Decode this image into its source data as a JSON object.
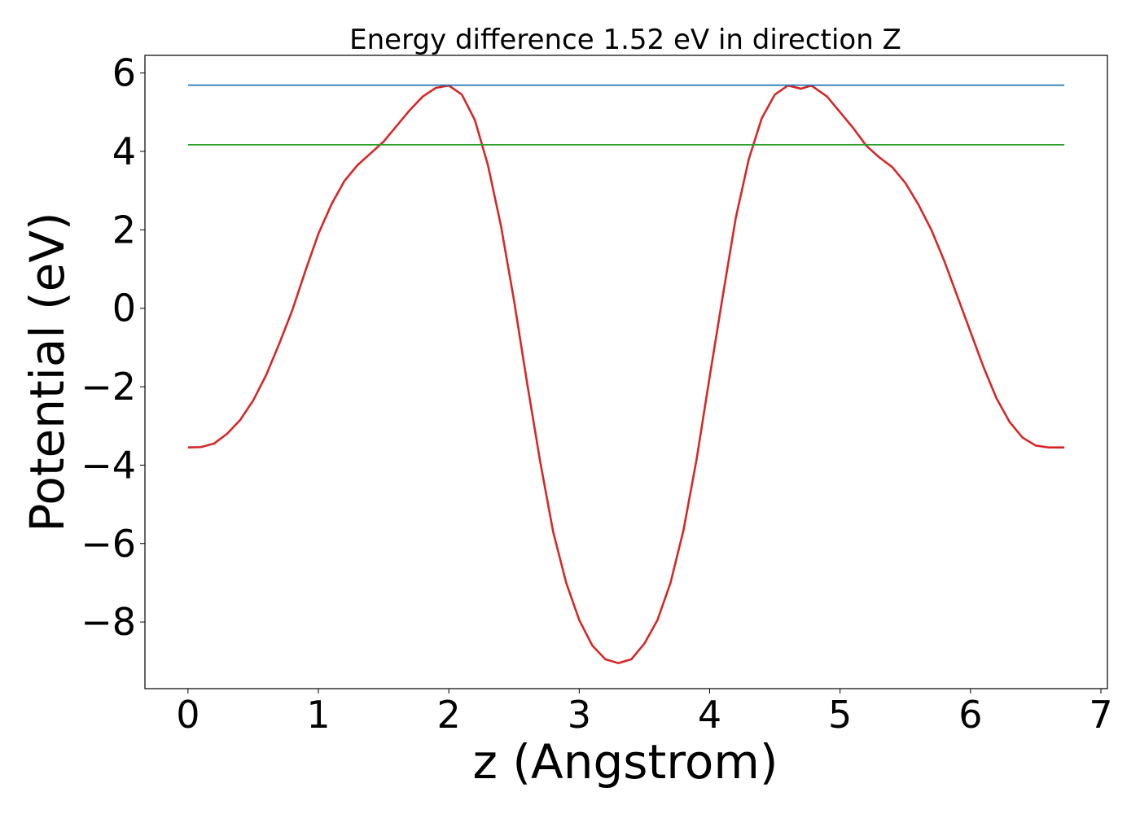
{
  "chart_data": {
    "type": "line",
    "title": "Energy difference 1.52 eV in direction Z",
    "xlabel": "z (Angstrom)",
    "ylabel": "Potential (eV)",
    "xlim": [
      -0.33,
      7.05
    ],
    "ylim": [
      -9.7,
      6.45
    ],
    "xticks": [
      0,
      1,
      2,
      3,
      4,
      5,
      6,
      7
    ],
    "yticks": [
      -8,
      -6,
      -4,
      -2,
      0,
      2,
      4,
      6
    ],
    "xtick_labels": [
      "0",
      "1",
      "2",
      "3",
      "4",
      "5",
      "6",
      "7"
    ],
    "ytick_labels": [
      "−8",
      "−6",
      "−4",
      "−2",
      "0",
      "2",
      "4",
      "6"
    ],
    "grid": false,
    "series": [
      {
        "color": "#d62728",
        "x": [
          0,
          0.1,
          0.2,
          0.3,
          0.4,
          0.5,
          0.6,
          0.7,
          0.8,
          0.9,
          1.0,
          1.1,
          1.2,
          1.3,
          1.4,
          1.5,
          1.6,
          1.7,
          1.8,
          1.9,
          2.0,
          2.1,
          2.2,
          2.3,
          2.4,
          2.5,
          2.6,
          2.7,
          2.8,
          2.9,
          3.0,
          3.1,
          3.2,
          3.3,
          3.4,
          3.5,
          3.6,
          3.7,
          3.8,
          3.9,
          4.0,
          4.1,
          4.2,
          4.3,
          4.4,
          4.5,
          4.6,
          4.7,
          4.78,
          4.9,
          5.0,
          5.1,
          5.2,
          5.3,
          5.4,
          5.5,
          5.6,
          5.7,
          5.8,
          5.9,
          6.0,
          6.1,
          6.2,
          6.3,
          6.4,
          6.5,
          6.6,
          6.72
        ],
        "y": [
          -3.55,
          -3.54,
          -3.45,
          -3.2,
          -2.85,
          -2.35,
          -1.7,
          -0.9,
          -0.05,
          0.95,
          1.9,
          2.65,
          3.25,
          3.65,
          3.95,
          4.25,
          4.65,
          5.05,
          5.4,
          5.62,
          5.68,
          5.45,
          4.8,
          3.65,
          2.1,
          0.2,
          -1.9,
          -3.9,
          -5.7,
          -7.0,
          -7.95,
          -8.6,
          -8.95,
          -9.05,
          -8.95,
          -8.55,
          -7.95,
          -7.0,
          -5.65,
          -3.85,
          -1.75,
          0.3,
          2.3,
          3.8,
          4.85,
          5.45,
          5.68,
          5.6,
          5.68,
          5.4,
          5.0,
          4.6,
          4.15,
          3.85,
          3.6,
          3.2,
          2.65,
          2.0,
          1.2,
          0.3,
          -0.6,
          -1.5,
          -2.3,
          -2.9,
          -3.3,
          -3.5,
          -3.55,
          -3.55
        ]
      },
      {
        "color": "#1f77b4",
        "x": [
          0,
          6.72
        ],
        "y": [
          5.69,
          5.69
        ]
      },
      {
        "color": "#2ca02c",
        "x": [
          0,
          6.72
        ],
        "y": [
          4.17,
          4.17
        ]
      }
    ]
  }
}
